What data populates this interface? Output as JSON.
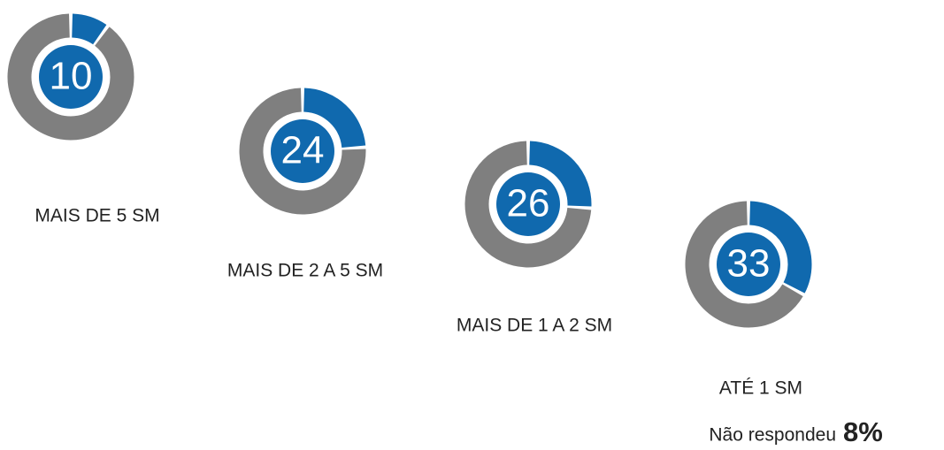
{
  "chart_data": [
    {
      "type": "donut",
      "title": "MAIS DE 5 SM",
      "value": 10,
      "color": "#1069ae",
      "rest_color": "#7f7f7f"
    },
    {
      "type": "donut",
      "title": "MAIS DE 2 A 5 SM",
      "value": 24,
      "color": "#1069ae",
      "rest_color": "#7f7f7f"
    },
    {
      "type": "donut",
      "title": "MAIS DE 1 A 2 SM",
      "value": 26,
      "color": "#1069ae",
      "rest_color": "#7f7f7f"
    },
    {
      "type": "donut",
      "title": "ATÉ 1 SM",
      "value": 33,
      "color": "#1069ae",
      "rest_color": "#7f7f7f"
    }
  ],
  "footnote": {
    "text": "Não respondeu",
    "value": 8,
    "value_label": "8%"
  }
}
